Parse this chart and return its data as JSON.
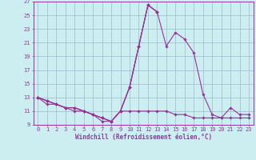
{
  "xlabel": "Windchill (Refroidissement éolien,°C)",
  "x": [
    0,
    1,
    2,
    3,
    4,
    5,
    6,
    7,
    8,
    9,
    10,
    11,
    12,
    13,
    14,
    15,
    16,
    17,
    18,
    19,
    20,
    21,
    22,
    23
  ],
  "lines": [
    [
      13,
      12.5,
      12,
      11.5,
      11.5,
      11,
      10.5,
      10,
      9.5,
      11,
      14.5,
      20.5,
      26.5,
      25.5,
      null,
      null,
      null,
      null,
      null,
      null,
      null,
      null,
      null,
      null
    ],
    [
      13,
      12.5,
      12,
      11.5,
      11.5,
      11,
      10.5,
      10,
      9.5,
      11,
      14.5,
      20.5,
      26.5,
      25.5,
      null,
      null,
      null,
      null,
      null,
      null,
      null,
      null,
      null,
      null
    ],
    [
      13,
      12.5,
      12,
      11.5,
      11.5,
      11,
      10.5,
      10,
      9.5,
      11,
      14.5,
      20.5,
      26.5,
      25.5,
      20.5,
      22.5,
      21.5,
      19.5,
      13.5,
      10.5,
      10,
      11.5,
      10.5,
      10.5
    ],
    [
      13,
      12,
      12,
      11.5,
      11,
      11,
      10.5,
      9.5,
      9.5,
      11,
      11,
      11,
      11,
      11,
      11,
      10.5,
      10.5,
      10,
      10,
      10,
      10,
      10,
      10,
      10
    ]
  ],
  "ylim": [
    9,
    27
  ],
  "xlim": [
    -0.5,
    23.5
  ],
  "yticks": [
    9,
    11,
    13,
    15,
    17,
    19,
    21,
    23,
    25,
    27
  ],
  "xticks": [
    0,
    1,
    2,
    3,
    4,
    5,
    6,
    7,
    8,
    9,
    10,
    11,
    12,
    13,
    14,
    15,
    16,
    17,
    18,
    19,
    20,
    21,
    22,
    23
  ],
  "line_color": "#993399",
  "bg_color": "#cceef0",
  "grid_color": "#99bbcc"
}
